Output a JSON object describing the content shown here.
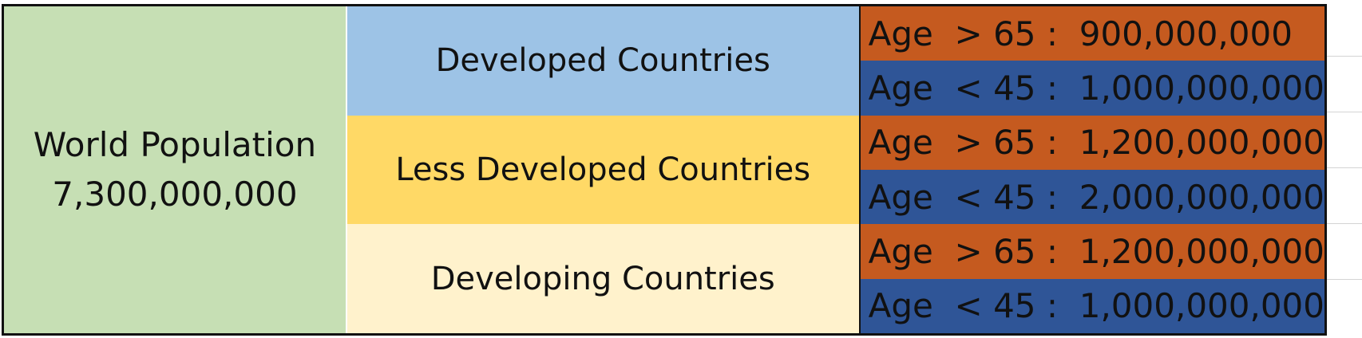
{
  "colors": {
    "world": "#c6dfb4",
    "developed": "#9dc3e6",
    "less_developed": "#ffd966",
    "developing": "#fff2cc",
    "age_over_65": "#c55a1f",
    "age_under_45": "#2f5597"
  },
  "world": {
    "label": "World Population",
    "value": "7,300,000,000"
  },
  "groups": [
    {
      "name": "Developed Countries"
    },
    {
      "name": "Less Developed Countries"
    },
    {
      "name": "Developing Countries"
    }
  ],
  "age_rows": [
    {
      "text": "Age  > 65 :  900,000,000"
    },
    {
      "text": "Age  < 45 :  1,000,000,000"
    },
    {
      "text": "Age  > 65 :  1,200,000,000"
    },
    {
      "text": "Age  < 45 :  2,000,000,000"
    },
    {
      "text": "Age  > 65 :  1,200,000,000"
    },
    {
      "text": "Age  < 45 :  1,000,000,000"
    }
  ]
}
